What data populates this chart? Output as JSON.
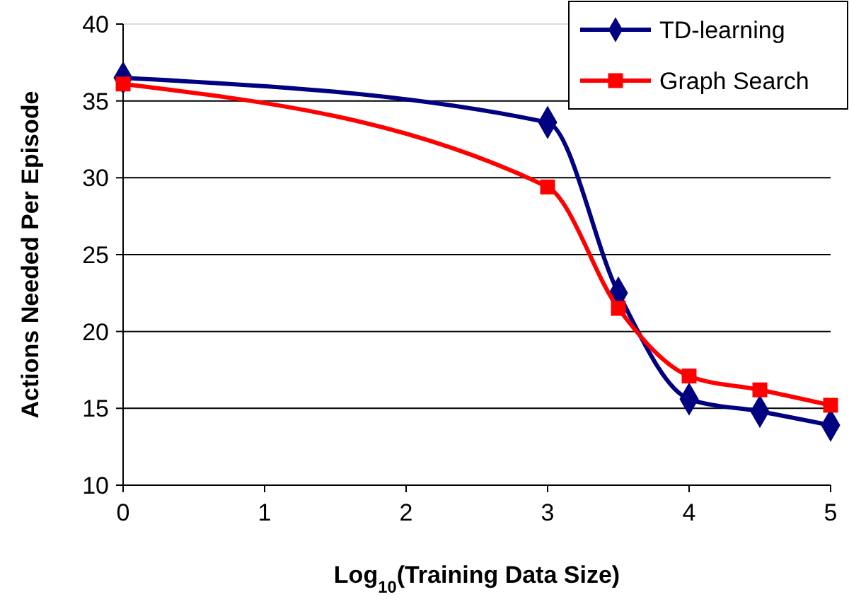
{
  "chart_data": {
    "type": "line",
    "xlabel": "Log$_{10}$(Training Data Size)",
    "ylabel": "Actions Needed Per Episode",
    "xlim": [
      0,
      5
    ],
    "xticks": [
      0,
      1,
      2,
      3,
      4,
      5
    ],
    "ylim": [
      10,
      40
    ],
    "yticks": [
      10,
      15,
      20,
      25,
      30,
      35,
      40
    ],
    "grid": "y",
    "legend": "top right",
    "line_style": "solid",
    "series": [
      {
        "name": "TD-learning",
        "color": "#000080",
        "marker": "diamond",
        "x": [
          0,
          3,
          3.5,
          4,
          4.5,
          5
        ],
        "values": [
          36.5,
          33.6,
          22.5,
          15.6,
          14.8,
          13.9
        ]
      },
      {
        "name": "Graph Search",
        "color": "#ff0000",
        "marker": "square",
        "x": [
          0,
          3,
          3.5,
          4,
          4.5,
          5
        ],
        "values": [
          36.1,
          29.4,
          21.5,
          17.1,
          16.2,
          15.2
        ]
      }
    ]
  }
}
